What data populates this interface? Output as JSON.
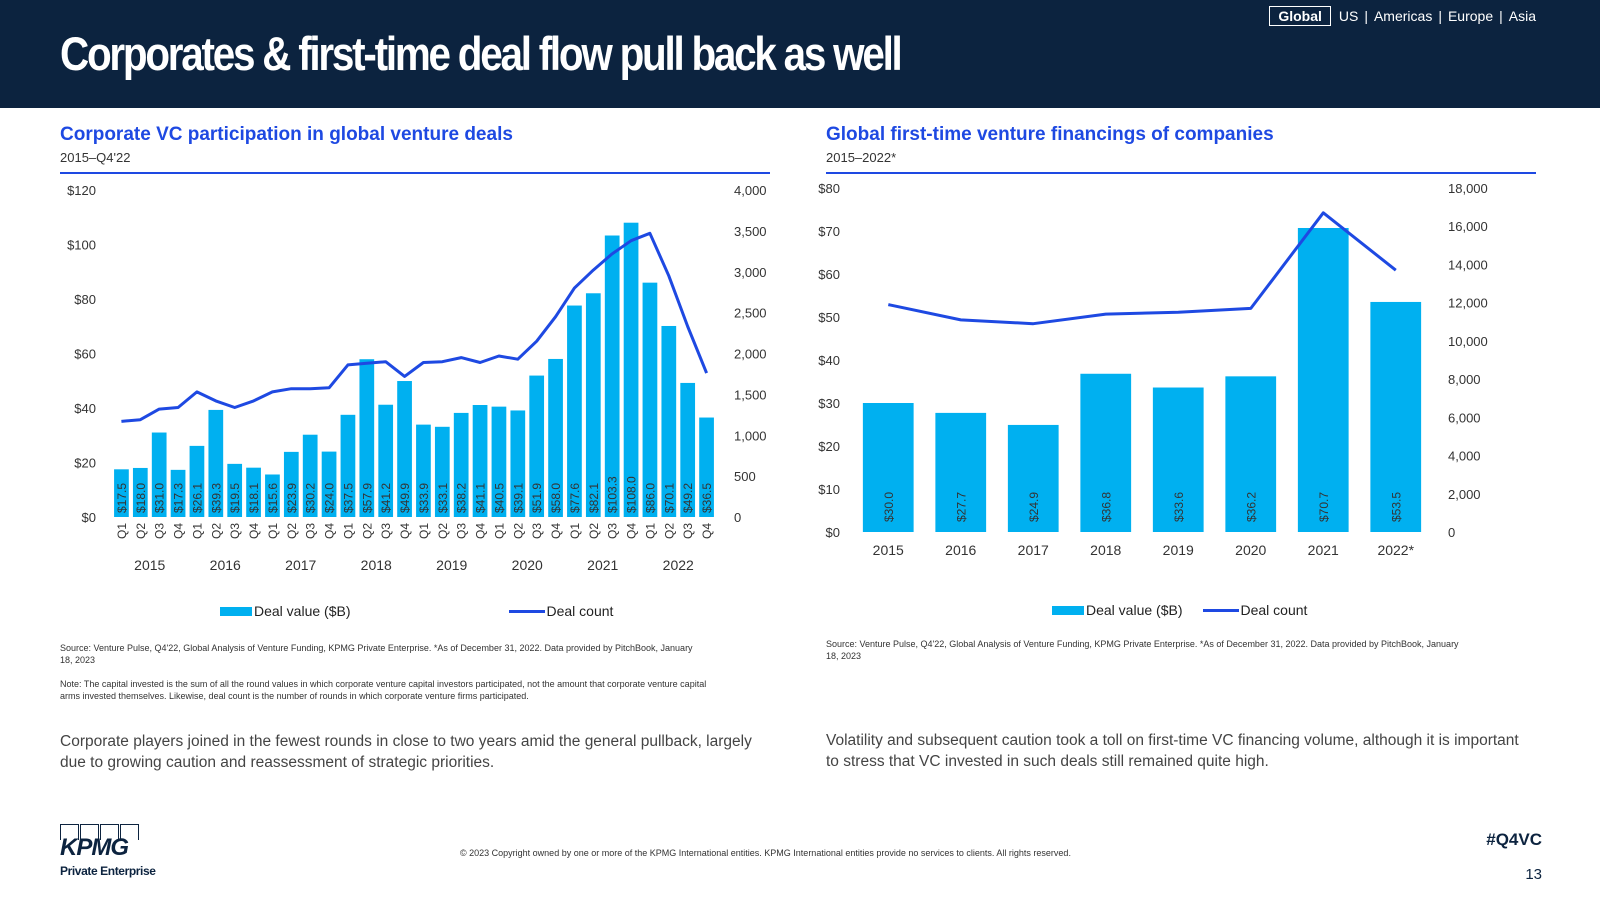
{
  "header": {
    "title": "Corporates & first-time deal flow pull back as well",
    "nav": {
      "active": "Global",
      "others": [
        "US",
        "Americas",
        "Europe",
        "Asia"
      ]
    }
  },
  "left_panel": {
    "title": "Corporate VC participation in global venture deals",
    "subtitle": "2015–Q4'22",
    "legend": {
      "bar": "Deal value ($B)",
      "line": "Deal count"
    },
    "source": "Source: Venture Pulse, Q4'22, Global Analysis of Venture Funding, KPMG Private Enterprise. *As of December 31, 2022. Data provided by PitchBook, January 18, 2023",
    "note": "Note: The capital invested is the sum of all the round values in which corporate venture capital investors participated, not the amount that corporate venture capital arms invested themselves. Likewise, deal count is the number of rounds in which corporate venture firms participated.",
    "body": "Corporate players joined in the fewest rounds in close to two years amid the general pullback, largely due to growing caution and reassessment of strategic priorities."
  },
  "right_panel": {
    "title": "Global first-time venture financings of companies",
    "subtitle": "2015–2022*",
    "legend": {
      "bar": "Deal value ($B)",
      "line": "Deal count"
    },
    "source": "Source: Venture Pulse, Q4'22, Global Analysis of Venture Funding, KPMG Private Enterprise. *As of December 31, 2022. Data provided by PitchBook, January 18, 2023",
    "body": "Volatility and subsequent caution took a toll on first-time VC financing volume, although it is important to stress that VC invested in such deals still remained quite high."
  },
  "footer": {
    "copyright": "© 2023 Copyright owned by one or more of the KPMG International entities. KPMG International entities provide no services to clients. All rights reserved.",
    "hashtag": "#Q4VC",
    "page_number": "13",
    "logo_word": "KPMG",
    "logo_sub": "Private Enterprise"
  },
  "colors": {
    "bar": "#00b0f0",
    "line": "#1e49e2",
    "header_bg": "#0c233f",
    "title_blue": "#1e49e2"
  },
  "chart_data": [
    {
      "type": "bar",
      "title": "Corporate VC participation in global venture deals",
      "subtitle": "2015–Q4'22",
      "quarters": [
        "Q1",
        "Q2",
        "Q3",
        "Q4",
        "Q1",
        "Q2",
        "Q3",
        "Q4",
        "Q1",
        "Q2",
        "Q3",
        "Q4",
        "Q1",
        "Q2",
        "Q3",
        "Q4",
        "Q1",
        "Q2",
        "Q3",
        "Q4",
        "Q1",
        "Q2",
        "Q3",
        "Q4",
        "Q1",
        "Q2",
        "Q3",
        "Q4",
        "Q1",
        "Q2",
        "Q3",
        "Q4"
      ],
      "years": [
        "2015",
        "2016",
        "2017",
        "2018",
        "2019",
        "2020",
        "2021",
        "2022"
      ],
      "series": [
        {
          "name": "Deal value ($B)",
          "kind": "bar",
          "axis": "left",
          "values": [
            17.5,
            18.0,
            31.0,
            17.3,
            26.1,
            39.3,
            19.5,
            18.1,
            15.6,
            23.9,
            30.2,
            24.0,
            37.5,
            57.9,
            41.2,
            49.9,
            33.9,
            33.1,
            38.2,
            41.1,
            40.5,
            39.1,
            51.9,
            58.0,
            77.6,
            82.1,
            103.3,
            108.0,
            86.0,
            70.1,
            49.2,
            36.5
          ],
          "labels": [
            "$17.5",
            "$18.0",
            "$31.0",
            "$17.3",
            "$26.1",
            "$39.3",
            "$19.5",
            "$18.1",
            "$15.6",
            "$23.9",
            "$30.2",
            "$24.0",
            "$37.5",
            "$57.9",
            "$41.2",
            "$49.9",
            "$33.9",
            "$33.1",
            "$38.2",
            "$41.1",
            "$40.5",
            "$39.1",
            "$51.9",
            "$58.0",
            "$77.6",
            "$82.1",
            "$103.3",
            "$108.0",
            "$86.0",
            "$70.1",
            "$49.2",
            "$36.5"
          ]
        },
        {
          "name": "Deal count",
          "kind": "line",
          "axis": "right",
          "values": [
            1170,
            1190,
            1320,
            1340,
            1530,
            1420,
            1340,
            1420,
            1530,
            1570,
            1570,
            1580,
            1860,
            1880,
            1900,
            1720,
            1890,
            1900,
            1950,
            1890,
            1970,
            1930,
            2150,
            2450,
            2800,
            3020,
            3220,
            3380,
            3470,
            2950,
            2330,
            1760
          ]
        }
      ],
      "y_left": {
        "min": 0,
        "max": 120,
        "ticks": [
          0,
          20,
          40,
          60,
          80,
          100,
          120
        ],
        "tick_labels": [
          "$0",
          "$20",
          "$40",
          "$60",
          "$80",
          "$100",
          "$120"
        ]
      },
      "y_right": {
        "min": 0,
        "max": 4000,
        "ticks": [
          0,
          500,
          1000,
          1500,
          2000,
          2500,
          3000,
          3500,
          4000
        ],
        "tick_labels": [
          "0",
          "500",
          "1,000",
          "1,500",
          "2,000",
          "2,500",
          "3,000",
          "3,500",
          "4,000"
        ]
      },
      "grid": false,
      "legend": "bottom"
    },
    {
      "type": "bar",
      "title": "Global first-time venture financings of companies",
      "subtitle": "2015–2022*",
      "categories": [
        "2015",
        "2016",
        "2017",
        "2018",
        "2019",
        "2020",
        "2021",
        "2022*"
      ],
      "series": [
        {
          "name": "Deal value ($B)",
          "kind": "bar",
          "axis": "left",
          "values": [
            30.0,
            27.7,
            24.9,
            36.8,
            33.6,
            36.2,
            70.7,
            53.5
          ],
          "labels": [
            "$30.0",
            "$27.7",
            "$24.9",
            "$36.8",
            "$33.6",
            "$36.2",
            "$70.7",
            "$53.5"
          ]
        },
        {
          "name": "Deal count",
          "kind": "line",
          "axis": "right",
          "values": [
            11900,
            11100,
            10900,
            11400,
            11500,
            11700,
            16700,
            13700
          ]
        }
      ],
      "y_left": {
        "min": 0,
        "max": 80,
        "ticks": [
          0,
          10,
          20,
          30,
          40,
          50,
          60,
          70,
          80
        ],
        "tick_labels": [
          "$0",
          "$10",
          "$20",
          "$30",
          "$40",
          "$50",
          "$60",
          "$70",
          "$80"
        ]
      },
      "y_right": {
        "min": 0,
        "max": 18000,
        "ticks": [
          0,
          2000,
          4000,
          6000,
          8000,
          10000,
          12000,
          14000,
          16000,
          18000
        ],
        "tick_labels": [
          "0",
          "2,000",
          "4,000",
          "6,000",
          "8,000",
          "10,000",
          "12,000",
          "14,000",
          "16,000",
          "18,000"
        ]
      },
      "grid": false,
      "legend": "bottom"
    }
  ]
}
